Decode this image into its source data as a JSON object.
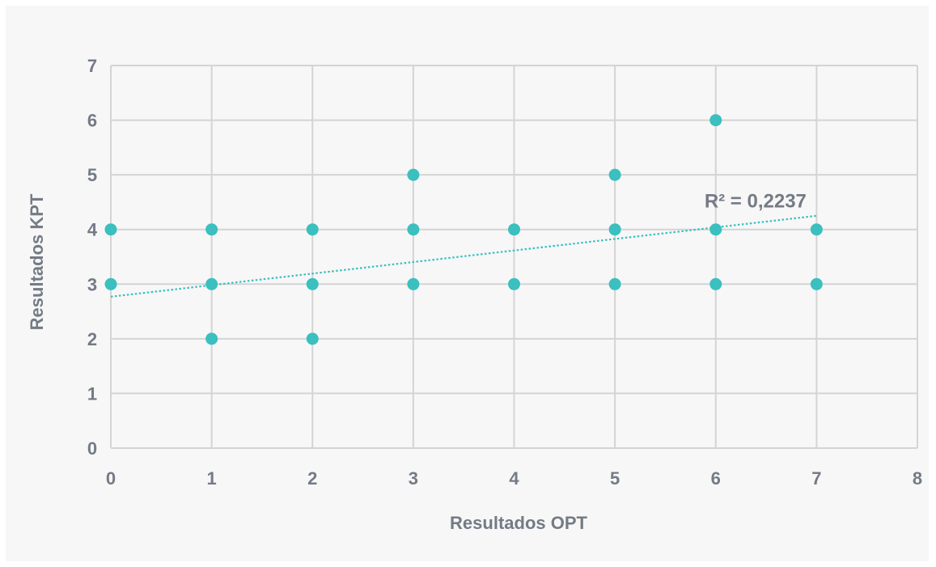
{
  "chart_data": {
    "type": "scatter",
    "xlabel": "Resultados OPT",
    "ylabel": "Resultados KPT",
    "xlim": [
      0,
      8
    ],
    "ylim": [
      0,
      7
    ],
    "x_ticks": [
      "0",
      "1",
      "2",
      "3",
      "4",
      "5",
      "6",
      "7",
      "8"
    ],
    "y_ticks": [
      "0",
      "1",
      "2",
      "3",
      "4",
      "5",
      "6",
      "7"
    ],
    "grid": true,
    "legend": "none",
    "points": [
      {
        "x": 0,
        "y": 4
      },
      {
        "x": 0,
        "y": 3
      },
      {
        "x": 1,
        "y": 4
      },
      {
        "x": 1,
        "y": 3
      },
      {
        "x": 1,
        "y": 2
      },
      {
        "x": 2,
        "y": 4
      },
      {
        "x": 2,
        "y": 3
      },
      {
        "x": 2,
        "y": 2
      },
      {
        "x": 3,
        "y": 5
      },
      {
        "x": 3,
        "y": 4
      },
      {
        "x": 3,
        "y": 3
      },
      {
        "x": 4,
        "y": 4
      },
      {
        "x": 4,
        "y": 3
      },
      {
        "x": 5,
        "y": 5
      },
      {
        "x": 5,
        "y": 4
      },
      {
        "x": 5,
        "y": 3
      },
      {
        "x": 6,
        "y": 6
      },
      {
        "x": 6,
        "y": 4
      },
      {
        "x": 6,
        "y": 3
      },
      {
        "x": 7,
        "y": 4
      },
      {
        "x": 7,
        "y": 3
      }
    ],
    "trendline": {
      "type": "linear",
      "x_range": [
        0,
        7
      ],
      "y_at_start": 2.77,
      "y_at_end": 4.25,
      "r_squared_label": "R² = 0,2237"
    },
    "colors": {
      "point": "#3bbfbf",
      "trendline": "#3bbfbf",
      "grid": "#d4d4d4",
      "text": "#747b85",
      "background": "#f7f7f7"
    }
  }
}
